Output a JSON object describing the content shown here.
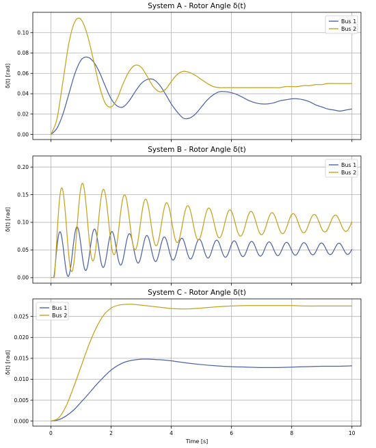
{
  "figure": {
    "xlabel": "Time [s]"
  },
  "colors": {
    "bus1": "#4c62a5",
    "bus2": "#c4a21a"
  },
  "chart_data": [
    {
      "type": "line",
      "title": "System A - Rotor Angle δ(t)",
      "ylabel": "δ(t) [rad]",
      "xlabel": "",
      "xlim": [
        -0.6,
        10.3
      ],
      "ylim": [
        -0.005,
        0.12
      ],
      "x_ticks": [
        0,
        2,
        4,
        6,
        8,
        10
      ],
      "y_ticks": [
        0.0,
        0.02,
        0.04,
        0.06,
        0.08,
        0.1
      ],
      "y_tick_decimals": 2,
      "show_x_tick_labels": false,
      "grid": true,
      "legend": "top-right",
      "series": [
        {
          "name": "Bus 1",
          "color": "#4c62a5",
          "x": [
            0,
            0.2,
            0.4,
            0.6,
            0.8,
            1.0,
            1.2,
            1.4,
            1.6,
            1.8,
            2.0,
            2.2,
            2.4,
            2.6,
            2.8,
            3.0,
            3.2,
            3.4,
            3.6,
            3.8,
            4.0,
            4.2,
            4.4,
            4.6,
            4.8,
            5.0,
            5.2,
            5.4,
            5.6,
            5.8,
            6.0,
            6.2,
            6.4,
            6.6,
            6.8,
            7.0,
            7.2,
            7.4,
            7.6,
            7.8,
            8.0,
            8.2,
            8.4,
            8.6,
            8.8,
            9.0,
            9.2,
            9.4,
            9.6,
            9.8,
            10.0
          ],
          "y": [
            0.0,
            0.006,
            0.02,
            0.04,
            0.06,
            0.073,
            0.076,
            0.072,
            0.062,
            0.048,
            0.035,
            0.028,
            0.027,
            0.033,
            0.042,
            0.05,
            0.054,
            0.054,
            0.049,
            0.04,
            0.03,
            0.022,
            0.016,
            0.016,
            0.02,
            0.027,
            0.034,
            0.039,
            0.042,
            0.042,
            0.041,
            0.039,
            0.036,
            0.033,
            0.031,
            0.03,
            0.03,
            0.031,
            0.033,
            0.034,
            0.035,
            0.035,
            0.034,
            0.032,
            0.029,
            0.027,
            0.025,
            0.024,
            0.023,
            0.024,
            0.025
          ]
        },
        {
          "name": "Bus 2",
          "color": "#c4a21a",
          "x": [
            0,
            0.2,
            0.4,
            0.6,
            0.8,
            1.0,
            1.2,
            1.4,
            1.6,
            1.8,
            2.0,
            2.2,
            2.4,
            2.6,
            2.8,
            3.0,
            3.2,
            3.4,
            3.6,
            3.8,
            4.0,
            4.2,
            4.4,
            4.6,
            4.8,
            5.0,
            5.2,
            5.4,
            5.6,
            5.8,
            6.0,
            6.2,
            6.4,
            6.6,
            6.8,
            7.0,
            7.2,
            7.4,
            7.6,
            7.8,
            8.0,
            8.2,
            8.4,
            8.6,
            8.8,
            9.0,
            9.2,
            9.4,
            9.6,
            9.8,
            10.0
          ],
          "y": [
            0.0,
            0.015,
            0.052,
            0.09,
            0.111,
            0.113,
            0.099,
            0.075,
            0.049,
            0.031,
            0.027,
            0.035,
            0.05,
            0.062,
            0.068,
            0.066,
            0.057,
            0.047,
            0.042,
            0.044,
            0.052,
            0.059,
            0.062,
            0.061,
            0.058,
            0.054,
            0.05,
            0.047,
            0.046,
            0.046,
            0.046,
            0.046,
            0.046,
            0.046,
            0.046,
            0.046,
            0.046,
            0.046,
            0.046,
            0.047,
            0.047,
            0.047,
            0.048,
            0.048,
            0.049,
            0.049,
            0.05,
            0.05,
            0.05,
            0.05,
            0.05
          ]
        }
      ]
    },
    {
      "type": "line",
      "title": "System B - Rotor Angle δ(t)",
      "ylabel": "δ(t) [rad]",
      "xlabel": "",
      "xlim": [
        -0.6,
        10.3
      ],
      "ylim": [
        -0.01,
        0.22
      ],
      "x_ticks": [
        0,
        2,
        4,
        6,
        8,
        10
      ],
      "y_ticks": [
        0.0,
        0.05,
        0.1,
        0.15,
        0.2
      ],
      "y_tick_decimals": 2,
      "show_x_tick_labels": false,
      "grid": true,
      "legend": "top-right",
      "series": [
        {
          "name": "Bus 1",
          "color": "#4c62a5",
          "oscillation": {
            "t_end": 10,
            "period": 0.58,
            "base_start": 0.0,
            "base_end": 0.052,
            "base_rise_tau": 0.25,
            "amp_start": 0.052,
            "amp_end": 0.008,
            "amp_decay_tau": 3.2,
            "phase_shift": 0.0
          }
        },
        {
          "name": "Bus 2",
          "color": "#c4a21a",
          "oscillation": {
            "t_end": 10,
            "period": 0.7,
            "base_start": 0.0,
            "base_end": 0.098,
            "base_rise_tau": 0.25,
            "amp_start": 0.098,
            "amp_end": 0.01,
            "amp_decay_tau": 3.3,
            "phase_shift": 0.0
          }
        }
      ]
    },
    {
      "type": "line",
      "title": "System C - Rotor Angle δ(t)",
      "ylabel": "δ(t) [rad]",
      "xlabel": "Time [s]",
      "xlim": [
        -0.6,
        10.3
      ],
      "ylim": [
        -0.0012,
        0.0292
      ],
      "x_ticks": [
        0,
        2,
        4,
        6,
        8,
        10
      ],
      "y_ticks": [
        0.0,
        0.005,
        0.01,
        0.015,
        0.02,
        0.025
      ],
      "y_tick_decimals": 3,
      "show_x_tick_labels": true,
      "grid": true,
      "legend": "top-left",
      "series": [
        {
          "name": "Bus 1",
          "color": "#4c62a5",
          "x": [
            0,
            0.25,
            0.5,
            0.75,
            1.0,
            1.25,
            1.5,
            1.75,
            2.0,
            2.25,
            2.5,
            2.75,
            3.0,
            3.25,
            3.5,
            3.75,
            4.0,
            4.5,
            5.0,
            5.5,
            6.0,
            6.5,
            7.0,
            7.5,
            8.0,
            8.5,
            9.0,
            9.5,
            10.0
          ],
          "y": [
            0.0,
            0.0003,
            0.0012,
            0.0026,
            0.0045,
            0.0065,
            0.0086,
            0.0105,
            0.0122,
            0.0134,
            0.0142,
            0.0146,
            0.0148,
            0.0148,
            0.0147,
            0.0146,
            0.0144,
            0.0139,
            0.0135,
            0.0132,
            0.013,
            0.0129,
            0.0128,
            0.0128,
            0.0129,
            0.013,
            0.0131,
            0.0131,
            0.0132
          ]
        },
        {
          "name": "Bus 2",
          "color": "#c4a21a",
          "x": [
            0,
            0.25,
            0.5,
            0.75,
            1.0,
            1.25,
            1.5,
            1.75,
            2.0,
            2.25,
            2.5,
            2.75,
            3.0,
            3.25,
            3.5,
            3.75,
            4.0,
            4.5,
            5.0,
            5.5,
            6.0,
            6.5,
            7.0,
            7.5,
            8.0,
            8.5,
            9.0,
            9.5,
            10.0
          ],
          "y": [
            0.0,
            0.0007,
            0.0035,
            0.008,
            0.013,
            0.018,
            0.0222,
            0.0253,
            0.027,
            0.0277,
            0.0279,
            0.0279,
            0.0277,
            0.0275,
            0.0273,
            0.0271,
            0.0269,
            0.0268,
            0.027,
            0.0273,
            0.0275,
            0.0276,
            0.0276,
            0.0276,
            0.0276,
            0.0275,
            0.0275,
            0.0275,
            0.0275
          ]
        }
      ]
    }
  ]
}
